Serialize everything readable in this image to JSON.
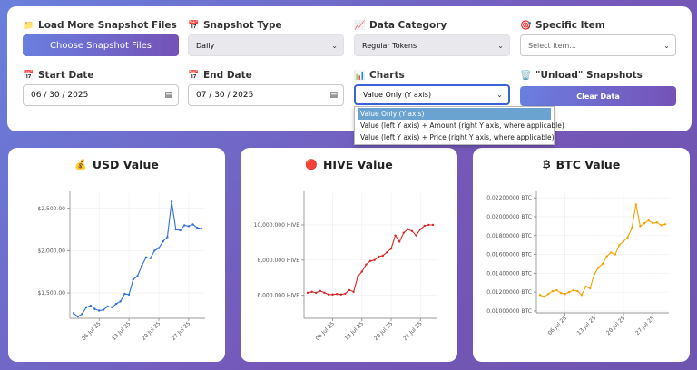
{
  "controls": {
    "load": {
      "label": "Load More Snapshot Files",
      "icon": "📁",
      "button": "Choose Snapshot Files"
    },
    "snapshot_type": {
      "label": "Snapshot Type",
      "icon": "📅",
      "value": "Daily"
    },
    "data_category": {
      "label": "Data Category",
      "icon": "📈",
      "value": "Regular Tokens"
    },
    "specific_item": {
      "label": "Specific Item",
      "icon": "🎯",
      "placeholder": "Select item..."
    },
    "start_date": {
      "label": "Start Date",
      "icon": "📅",
      "value": "06 / 30 / 2025"
    },
    "end_date": {
      "label": "End Date",
      "icon": "📅",
      "value": "07 / 30 / 2025"
    },
    "charts": {
      "label": "Charts",
      "icon": "📊",
      "value": "Value Only (Y axis)"
    },
    "unload": {
      "label": "\"Unload\" Snapshots",
      "icon": "🗑️",
      "button": "Clear Data"
    }
  },
  "charts_dropdown": [
    "Value Only (Y axis)",
    "Value (left Y axis) + Amount (right Y axis, where applicable)",
    "Value (left Y axis) + Price (right Y axis, where applicable)"
  ],
  "cards": [
    {
      "title": "USD Value",
      "icon": "💰"
    },
    {
      "title": "HIVE Value",
      "icon": "🔴"
    },
    {
      "title": "BTC Value",
      "icon": "₿"
    }
  ],
  "chart_data": [
    {
      "type": "line",
      "title": "USD Value",
      "color": "#2f6fdc",
      "x_ticks": [
        "06 Jul 25",
        "13 Jul 25",
        "20 Jul 25",
        "27 Jul 25"
      ],
      "y_ticks": [
        "$1,500.00",
        "$2,000.00",
        "$2,500.00"
      ],
      "y_tick_values": [
        1500,
        2000,
        2500
      ],
      "ylim": [
        1200,
        2680
      ],
      "x": [
        "2025-06-30",
        "2025-07-01",
        "2025-07-02",
        "2025-07-03",
        "2025-07-04",
        "2025-07-05",
        "2025-07-06",
        "2025-07-07",
        "2025-07-08",
        "2025-07-09",
        "2025-07-10",
        "2025-07-11",
        "2025-07-12",
        "2025-07-13",
        "2025-07-14",
        "2025-07-15",
        "2025-07-16",
        "2025-07-17",
        "2025-07-18",
        "2025-07-19",
        "2025-07-20",
        "2025-07-21",
        "2025-07-22",
        "2025-07-23",
        "2025-07-24",
        "2025-07-25",
        "2025-07-26",
        "2025-07-27",
        "2025-07-28",
        "2025-07-29",
        "2025-07-30"
      ],
      "values": [
        1260,
        1220,
        1250,
        1330,
        1350,
        1310,
        1290,
        1300,
        1340,
        1330,
        1370,
        1400,
        1490,
        1480,
        1660,
        1700,
        1820,
        1920,
        1910,
        2000,
        2030,
        2110,
        2160,
        2580,
        2250,
        2240,
        2300,
        2290,
        2310,
        2270,
        2260
      ]
    },
    {
      "type": "line",
      "title": "HIVE Value",
      "color": "#d62728",
      "x_ticks": [
        "06 Jul 25",
        "13 Jul 25",
        "20 Jul 25",
        "27 Jul 25"
      ],
      "y_ticks": [
        "6,000.000 HIVE",
        "8,000.000 HIVE",
        "10,000.000 HIVE"
      ],
      "y_tick_values": [
        6000,
        8000,
        10000
      ],
      "ylim": [
        4700,
        11800
      ],
      "x": [
        "2025-06-30",
        "2025-07-01",
        "2025-07-02",
        "2025-07-03",
        "2025-07-04",
        "2025-07-05",
        "2025-07-06",
        "2025-07-07",
        "2025-07-08",
        "2025-07-09",
        "2025-07-10",
        "2025-07-11",
        "2025-07-12",
        "2025-07-13",
        "2025-07-14",
        "2025-07-15",
        "2025-07-16",
        "2025-07-17",
        "2025-07-18",
        "2025-07-19",
        "2025-07-20",
        "2025-07-21",
        "2025-07-22",
        "2025-07-23",
        "2025-07-24",
        "2025-07-25",
        "2025-07-26",
        "2025-07-27",
        "2025-07-28",
        "2025-07-29",
        "2025-07-30"
      ],
      "values": [
        6150,
        6200,
        6150,
        6250,
        6150,
        6050,
        6050,
        6080,
        6050,
        6100,
        6300,
        6200,
        7050,
        7350,
        7750,
        7950,
        8000,
        8200,
        8250,
        8450,
        8650,
        9400,
        9050,
        9550,
        9750,
        9650,
        9400,
        9750,
        9950,
        10000,
        10000
      ]
    },
    {
      "type": "line",
      "title": "BTC Value",
      "color": "#f5a200",
      "x_ticks": [
        "06 Jul 25",
        "13 Jul 25",
        "20 Jul 25",
        "27 Jul 25"
      ],
      "y_ticks": [
        "0.01000000 BTC",
        "0.01200000 BTC",
        "0.01400000 BTC",
        "0.01600000 BTC",
        "0.01800000 BTC",
        "0.02000000 BTC",
        "0.02200000 BTC"
      ],
      "y_tick_values": [
        0.01,
        0.012,
        0.014,
        0.016,
        0.018,
        0.02,
        0.022
      ],
      "ylim": [
        0.0098,
        0.0225
      ],
      "x": [
        "2025-06-30",
        "2025-07-01",
        "2025-07-02",
        "2025-07-03",
        "2025-07-04",
        "2025-07-05",
        "2025-07-06",
        "2025-07-07",
        "2025-07-08",
        "2025-07-09",
        "2025-07-10",
        "2025-07-11",
        "2025-07-12",
        "2025-07-13",
        "2025-07-14",
        "2025-07-15",
        "2025-07-16",
        "2025-07-17",
        "2025-07-18",
        "2025-07-19",
        "2025-07-20",
        "2025-07-21",
        "2025-07-22",
        "2025-07-23",
        "2025-07-24",
        "2025-07-25",
        "2025-07-26",
        "2025-07-27",
        "2025-07-28",
        "2025-07-29",
        "2025-07-30"
      ],
      "values": [
        0.0117,
        0.0115,
        0.0118,
        0.0121,
        0.0122,
        0.0119,
        0.0118,
        0.012,
        0.0122,
        0.0121,
        0.0117,
        0.0126,
        0.0124,
        0.0139,
        0.0146,
        0.015,
        0.0158,
        0.0162,
        0.016,
        0.017,
        0.0174,
        0.0178,
        0.0188,
        0.0213,
        0.019,
        0.0193,
        0.0196,
        0.0193,
        0.0194,
        0.0191,
        0.0192
      ]
    }
  ]
}
